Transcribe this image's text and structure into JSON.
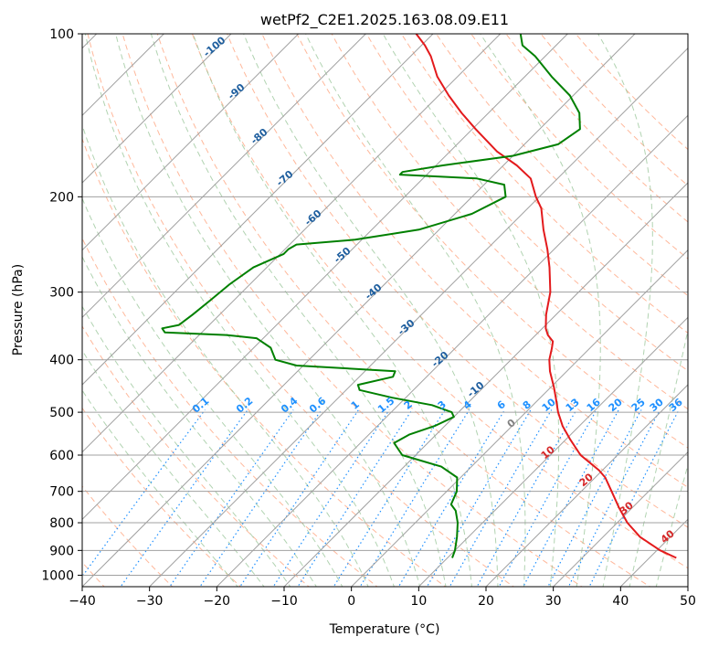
{
  "chart_data": {
    "type": "skew-t",
    "title": "wetPf2_C2E1.2025.163.08.09.E11",
    "xlabel": "Temperature (°C)",
    "ylabel": "Pressure (hPa)",
    "xlim": [
      -40,
      50
    ],
    "ylim_hpa": [
      1050,
      100
    ],
    "y_scale": "log",
    "grid": true,
    "x_ticks": [
      "−40",
      "−30",
      "−20",
      "−10",
      "0",
      "10",
      "20",
      "30",
      "40",
      "50"
    ],
    "x_tick_values": [
      -40,
      -30,
      -20,
      -10,
      0,
      10,
      20,
      30,
      40,
      50
    ],
    "y_ticks": [
      "100",
      "200",
      "300",
      "400",
      "500",
      "600",
      "700",
      "800",
      "900",
      "1000"
    ],
    "y_tick_values": [
      100,
      200,
      300,
      400,
      500,
      600,
      700,
      800,
      900,
      1000
    ],
    "series": [
      {
        "color": "#e31a1c",
        "points": [
          [
            929,
            44.0
          ],
          [
            900,
            40.5
          ],
          [
            850,
            35.5
          ],
          [
            800,
            31.5
          ],
          [
            750,
            28.0
          ],
          [
            700,
            24.5
          ],
          [
            660,
            21.5
          ],
          [
            640,
            19.5
          ],
          [
            600,
            14.5
          ],
          [
            560,
            10.5
          ],
          [
            530,
            7.5
          ],
          [
            500,
            4.8
          ],
          [
            470,
            2.3
          ],
          [
            450,
            0.5
          ],
          [
            420,
            -2.5
          ],
          [
            400,
            -4.3
          ],
          [
            380,
            -5.7
          ],
          [
            370,
            -6.5
          ],
          [
            360,
            -8.2
          ],
          [
            350,
            -9.5
          ],
          [
            330,
            -11.5
          ],
          [
            300,
            -14.2
          ],
          [
            270,
            -18.0
          ],
          [
            250,
            -21.0
          ],
          [
            230,
            -24.5
          ],
          [
            210,
            -28.0
          ],
          [
            200,
            -30.5
          ],
          [
            185,
            -34.0
          ],
          [
            175,
            -38.0
          ],
          [
            165,
            -43.0
          ],
          [
            150,
            -49.5
          ],
          [
            140,
            -54.0
          ],
          [
            130,
            -58.5
          ],
          [
            120,
            -63.0
          ],
          [
            110,
            -67.0
          ],
          [
            105,
            -69.5
          ],
          [
            100,
            -72.5
          ]
        ]
      },
      {
        "color": "#008000",
        "points": [
          [
            929,
            10.7
          ],
          [
            900,
            10.0
          ],
          [
            850,
            8.3
          ],
          [
            800,
            6.3
          ],
          [
            760,
            4.2
          ],
          [
            740,
            2.6
          ],
          [
            700,
            1.5
          ],
          [
            660,
            -0.5
          ],
          [
            630,
            -4.5
          ],
          [
            600,
            -12.0
          ],
          [
            570,
            -15.0
          ],
          [
            550,
            -14.0
          ],
          [
            530,
            -11.5
          ],
          [
            510,
            -10.0
          ],
          [
            500,
            -11.0
          ],
          [
            485,
            -15.0
          ],
          [
            470,
            -22.0
          ],
          [
            455,
            -28.0
          ],
          [
            445,
            -29.0
          ],
          [
            430,
            -25.0
          ],
          [
            420,
            -25.5
          ],
          [
            410,
            -41.0
          ],
          [
            400,
            -45.0
          ],
          [
            380,
            -47.5
          ],
          [
            365,
            -51.0
          ],
          [
            360,
            -56.0
          ],
          [
            356,
            -65.5
          ],
          [
            350,
            -66.5
          ],
          [
            345,
            -64.5
          ],
          [
            330,
            -64.0
          ],
          [
            310,
            -63.5
          ],
          [
            290,
            -63.0
          ],
          [
            270,
            -62.0
          ],
          [
            255,
            -59.5
          ],
          [
            250,
            -59.5
          ],
          [
            245,
            -59.0
          ],
          [
            240,
            -51.0
          ],
          [
            230,
            -43.0
          ],
          [
            215,
            -37.5
          ],
          [
            200,
            -35.0
          ],
          [
            190,
            -37.0
          ],
          [
            185,
            -42.0
          ],
          [
            182,
            -54.0
          ],
          [
            180,
            -54.0
          ],
          [
            175,
            -49.0
          ],
          [
            168,
            -40.0
          ],
          [
            160,
            -35.0
          ],
          [
            150,
            -34.0
          ],
          [
            140,
            -36.5
          ],
          [
            130,
            -40.5
          ],
          [
            120,
            -46.0
          ],
          [
            110,
            -51.5
          ],
          [
            105,
            -55.0
          ],
          [
            100,
            -57.0
          ]
        ]
      }
    ],
    "dry_adiabat_labels": [
      "-100",
      "-90",
      "-80",
      "-70",
      "-60",
      "-50",
      "-40",
      "-30",
      "-20",
      "-10",
      "0",
      "10",
      "20",
      "30",
      "40"
    ],
    "mixing_ratio_labels": [
      "0.1",
      "0.2",
      "0.4",
      "0.6",
      "1",
      "1.5",
      "2",
      "3",
      "4",
      "6",
      "8",
      "10",
      "13",
      "16",
      "20",
      "25",
      "30",
      "36"
    ],
    "colors": {
      "temperature": "#e31a1c",
      "dewpoint": "#008000",
      "isobar": "#a0a0a0",
      "isotherm": "#a0a0a0",
      "dry_adiabat": "#ffa07a",
      "moist_adiabat": "#90c090",
      "mixing_ratio": "#1e90ff",
      "label_dark_blue": "#1f5f9f",
      "label_red": "#d62728",
      "label_gray": "#808080",
      "label_light_blue": "#1e90ff"
    }
  }
}
